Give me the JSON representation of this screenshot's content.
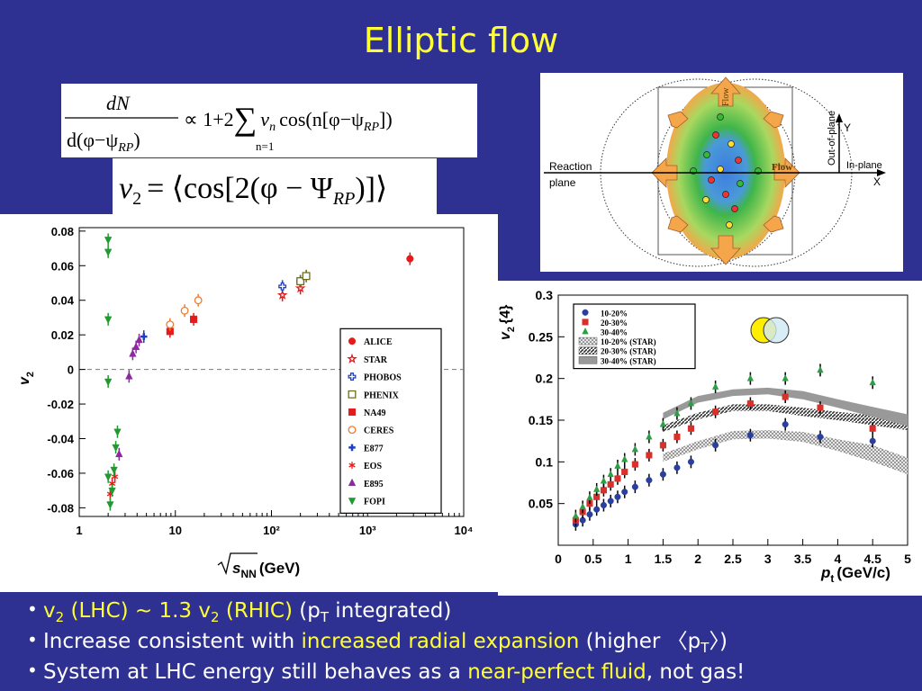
{
  "title": "Elliptic flow",
  "equations": [
    {
      "numerator": "dN",
      "denominator": [
        "d(φ−ψ",
        "RP",
        ")"
      ],
      "rhs": [
        "∝ 1+2",
        "∑",
        "v",
        "n",
        "cos(n[φ−ψ",
        "RP",
        "])"
      ],
      "sum_index": "n=1"
    },
    {
      "parts": [
        "v",
        "2",
        "= ⟨cos[2(φ − Ψ",
        "RP",
        ")]⟩"
      ]
    }
  ],
  "diagram": {
    "reaction_plane": [
      "Reaction",
      "plane"
    ],
    "flow_in": "Flow",
    "flow_out": "Flow",
    "out_of_plane": "Out-of-plane",
    "in_plane": "In-plane",
    "y_axis": "Y",
    "x_axis": "X"
  },
  "chart_data": [
    {
      "type": "scatter",
      "xlog": true,
      "xlim": [
        1,
        10000
      ],
      "ylim": [
        -0.085,
        0.082
      ],
      "xticks": [
        1,
        10,
        {
          "value": 100,
          "label": "10²"
        },
        {
          "value": 1000,
          "label": "10³"
        },
        {
          "value": 10000,
          "label": "10⁴"
        }
      ],
      "yticks": [
        -0.08,
        -0.06,
        -0.04,
        -0.02,
        0,
        0.02,
        0.04,
        0.06,
        0.08
      ],
      "x_label": {
        "base": "s",
        "sub": "NN",
        "unit": "(GeV)"
      },
      "y_label": {
        "base": "v",
        "sub": "2"
      },
      "zero_line": true,
      "legend": "right",
      "series": [
        {
          "name": "ALICE",
          "color": "#e41a1c",
          "marker": "circle",
          "x": [
            2760
          ],
          "values": [
            0.064
          ]
        },
        {
          "name": "STAR",
          "color": "#e41a1c",
          "marker": "star-open",
          "x": [
            130,
            200
          ],
          "values": [
            0.043,
            0.047
          ]
        },
        {
          "name": "PHOBOS",
          "color": "#1f3fbf",
          "marker": "cross-open",
          "x": [
            130,
            200
          ],
          "values": [
            0.048,
            0.051
          ]
        },
        {
          "name": "PHENIX",
          "color": "#6b6b1e",
          "marker": "square-open",
          "x": [
            200,
            230
          ],
          "values": [
            0.051,
            0.054
          ]
        },
        {
          "name": "NA49",
          "color": "#e41a1c",
          "marker": "square",
          "x": [
            8.8,
            15.5
          ],
          "values": [
            0.022,
            0.029
          ]
        },
        {
          "name": "CERES",
          "color": "#f07a30",
          "marker": "circle-open",
          "x": [
            8.8,
            12.5,
            17.3
          ],
          "values": [
            0.026,
            0.034,
            0.04
          ]
        },
        {
          "name": "E877",
          "color": "#1f3fbf",
          "marker": "cross",
          "x": [
            4.7
          ],
          "values": [
            0.019
          ]
        },
        {
          "name": "EOS",
          "color": "#e41a1c",
          "marker": "asterisk",
          "x": [
            2.1,
            2.2,
            2.35
          ],
          "values": [
            -0.072,
            -0.066,
            -0.062
          ]
        },
        {
          "name": "E895",
          "color": "#8b2a9e",
          "marker": "triangle",
          "x": [
            2.6,
            3.3,
            3.6,
            3.9,
            4.2
          ],
          "values": [
            -0.049,
            -0.004,
            0.009,
            0.013,
            0.017
          ]
        },
        {
          "name": "FOPI",
          "color": "#1f9a2e",
          "marker": "triangle-down",
          "x": [
            2.0,
            2.0,
            2.0,
            2.0,
            2.0,
            2.1,
            2.2,
            2.3,
            2.4,
            2.5
          ],
          "values": [
            0.075,
            0.068,
            0.029,
            -0.007,
            -0.062,
            -0.078,
            -0.07,
            -0.058,
            -0.045,
            -0.036
          ]
        }
      ]
    },
    {
      "type": "scatter",
      "xlim": [
        0,
        5
      ],
      "ylim": [
        0,
        0.3
      ],
      "xticks": [
        0,
        0.5,
        1,
        1.5,
        2,
        2.5,
        3,
        3.5,
        4,
        4.5,
        5
      ],
      "yticks": [
        0.05,
        0.1,
        0.15,
        0.2,
        0.25,
        0.3
      ],
      "x_label": {
        "base": "p",
        "sub": "t",
        "unit": "(GeV/c)"
      },
      "y_label": {
        "base": "v",
        "sub": "2",
        "unit": "{4}"
      },
      "legend": "upper left",
      "series": [
        {
          "name": "10-20%",
          "color": "#2b3f9e",
          "marker": "circle",
          "x": [
            0.25,
            0.35,
            0.45,
            0.55,
            0.65,
            0.75,
            0.85,
            0.95,
            1.1,
            1.3,
            1.5,
            1.7,
            1.9,
            2.25,
            2.75,
            3.25,
            3.75,
            4.5
          ],
          "values": [
            0.025,
            0.03,
            0.037,
            0.043,
            0.048,
            0.053,
            0.058,
            0.064,
            0.07,
            0.078,
            0.085,
            0.093,
            0.1,
            0.12,
            0.132,
            0.145,
            0.13,
            0.125
          ]
        },
        {
          "name": "20-30%",
          "color": "#d9302c",
          "marker": "square",
          "x": [
            0.25,
            0.35,
            0.45,
            0.55,
            0.65,
            0.75,
            0.85,
            0.95,
            1.1,
            1.3,
            1.5,
            1.7,
            1.9,
            2.25,
            2.75,
            3.25,
            3.75,
            4.5
          ],
          "values": [
            0.03,
            0.04,
            0.05,
            0.058,
            0.066,
            0.073,
            0.08,
            0.088,
            0.097,
            0.108,
            0.12,
            0.13,
            0.14,
            0.16,
            0.17,
            0.178,
            0.165,
            0.14
          ]
        },
        {
          "name": "30-40%",
          "color": "#2e9e46",
          "marker": "triangle",
          "x": [
            0.25,
            0.35,
            0.45,
            0.55,
            0.65,
            0.75,
            0.85,
            0.95,
            1.1,
            1.3,
            1.5,
            1.7,
            1.9,
            2.25,
            2.75,
            3.25,
            3.75,
            4.5
          ],
          "values": [
            0.035,
            0.046,
            0.057,
            0.067,
            0.077,
            0.085,
            0.095,
            0.103,
            0.115,
            0.13,
            0.145,
            0.158,
            0.17,
            0.19,
            0.2,
            0.2,
            0.21,
            0.195
          ]
        },
        {
          "name": "10-20% (STAR)",
          "color": "#8a8a8a",
          "pattern": "crosshatch",
          "x": [
            1.5,
            2,
            2.5,
            3,
            3.5,
            4,
            4.5,
            5
          ],
          "lower": [
            0.1,
            0.115,
            0.127,
            0.128,
            0.124,
            0.113,
            0.1,
            0.085
          ],
          "upper": [
            0.11,
            0.125,
            0.137,
            0.138,
            0.136,
            0.127,
            0.12,
            0.105
          ]
        },
        {
          "name": "20-30% (STAR)",
          "color": "#333333",
          "pattern": "hatch",
          "x": [
            1.5,
            2,
            2.5,
            3,
            3.5,
            4,
            4.5,
            5
          ],
          "lower": [
            0.136,
            0.151,
            0.161,
            0.161,
            0.155,
            0.15,
            0.144,
            0.138
          ],
          "upper": [
            0.144,
            0.159,
            0.169,
            0.169,
            0.165,
            0.16,
            0.156,
            0.152
          ]
        },
        {
          "name": "30-40% (STAR)",
          "color": "#999999",
          "pattern": "solid",
          "x": [
            1.5,
            2,
            2.5,
            3,
            3.5,
            4,
            4.5,
            5
          ],
          "lower": [
            0.151,
            0.171,
            0.179,
            0.181,
            0.175,
            0.165,
            0.154,
            0.143
          ],
          "upper": [
            0.159,
            0.179,
            0.187,
            0.189,
            0.185,
            0.175,
            0.166,
            0.157
          ]
        }
      ]
    }
  ],
  "bullets": [
    [
      {
        "text": "v",
        "highlight": true
      },
      {
        "text": "2",
        "sub": true,
        "highlight": true
      },
      {
        "text": " (LHC) ~ 1.3 v",
        "highlight": true
      },
      {
        "text": "2",
        "sub": true,
        "highlight": true
      },
      {
        "text": " (RHIC)",
        "highlight": true
      },
      {
        "text": " (p"
      },
      {
        "text": "T",
        "sub": true
      },
      {
        "text": " integrated)"
      }
    ],
    [
      {
        "text": "Increase consistent with "
      },
      {
        "text": "increased radial expansion",
        "highlight": true
      },
      {
        "text": " (higher 〈p"
      },
      {
        "text": "T",
        "sub": true
      },
      {
        "text": "〉)"
      }
    ],
    [
      {
        "text": "System at LHC energy still behaves as a "
      },
      {
        "text": "near-perfect fluid",
        "highlight": true
      },
      {
        "text": ", not gas!"
      }
    ]
  ]
}
